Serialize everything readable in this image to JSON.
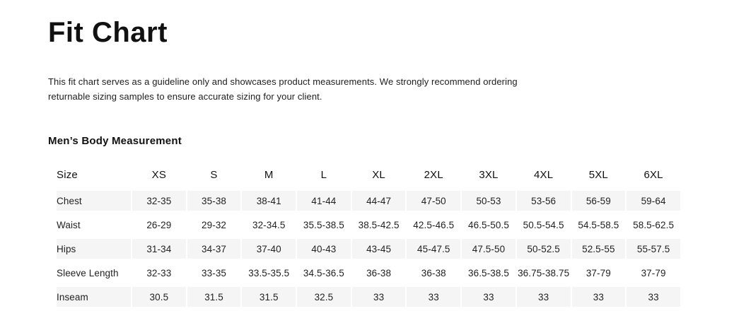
{
  "page": {
    "title": "Fit Chart",
    "description": "This fit chart serves as a guideline only and showcases product measurements. We strongly recommend ordering returnable sizing samples to ensure accurate sizing for your client.",
    "section_title": "Men’s Body Measurement"
  },
  "colors": {
    "stripe": "#f5f5f5",
    "text": "#1d1d1f",
    "background": "#ffffff"
  },
  "table": {
    "columns": [
      "Size",
      "XS",
      "S",
      "M",
      "L",
      "XL",
      "2XL",
      "3XL",
      "4XL",
      "5XL",
      "6XL"
    ],
    "rows": [
      {
        "label": "Chest",
        "values": [
          "32-35",
          "35-38",
          "38-41",
          "41-44",
          "44-47",
          "47-50",
          "50-53",
          "53-56",
          "56-59",
          "59-64"
        ]
      },
      {
        "label": "Waist",
        "values": [
          "26-29",
          "29-32",
          "32-34.5",
          "35.5-38.5",
          "38.5-42.5",
          "42.5-46.5",
          "46.5-50.5",
          "50.5-54.5",
          "54.5-58.5",
          "58.5-62.5"
        ]
      },
      {
        "label": "Hips",
        "values": [
          "31-34",
          "34-37",
          "37-40",
          "40-43",
          "43-45",
          "45-47.5",
          "47.5-50",
          "50-52.5",
          "52.5-55",
          "55-57.5"
        ]
      },
      {
        "label": "Sleeve Length",
        "values": [
          "32-33",
          "33-35",
          "33.5-35.5",
          "34.5-36.5",
          "36-38",
          "36-38",
          "36.5-38.5",
          "36.75-38.75",
          "37-79",
          "37-79"
        ]
      },
      {
        "label": "Inseam",
        "values": [
          "30.5",
          "31.5",
          "31.5",
          "32.5",
          "33",
          "33",
          "33",
          "33",
          "33",
          "33"
        ]
      }
    ]
  }
}
